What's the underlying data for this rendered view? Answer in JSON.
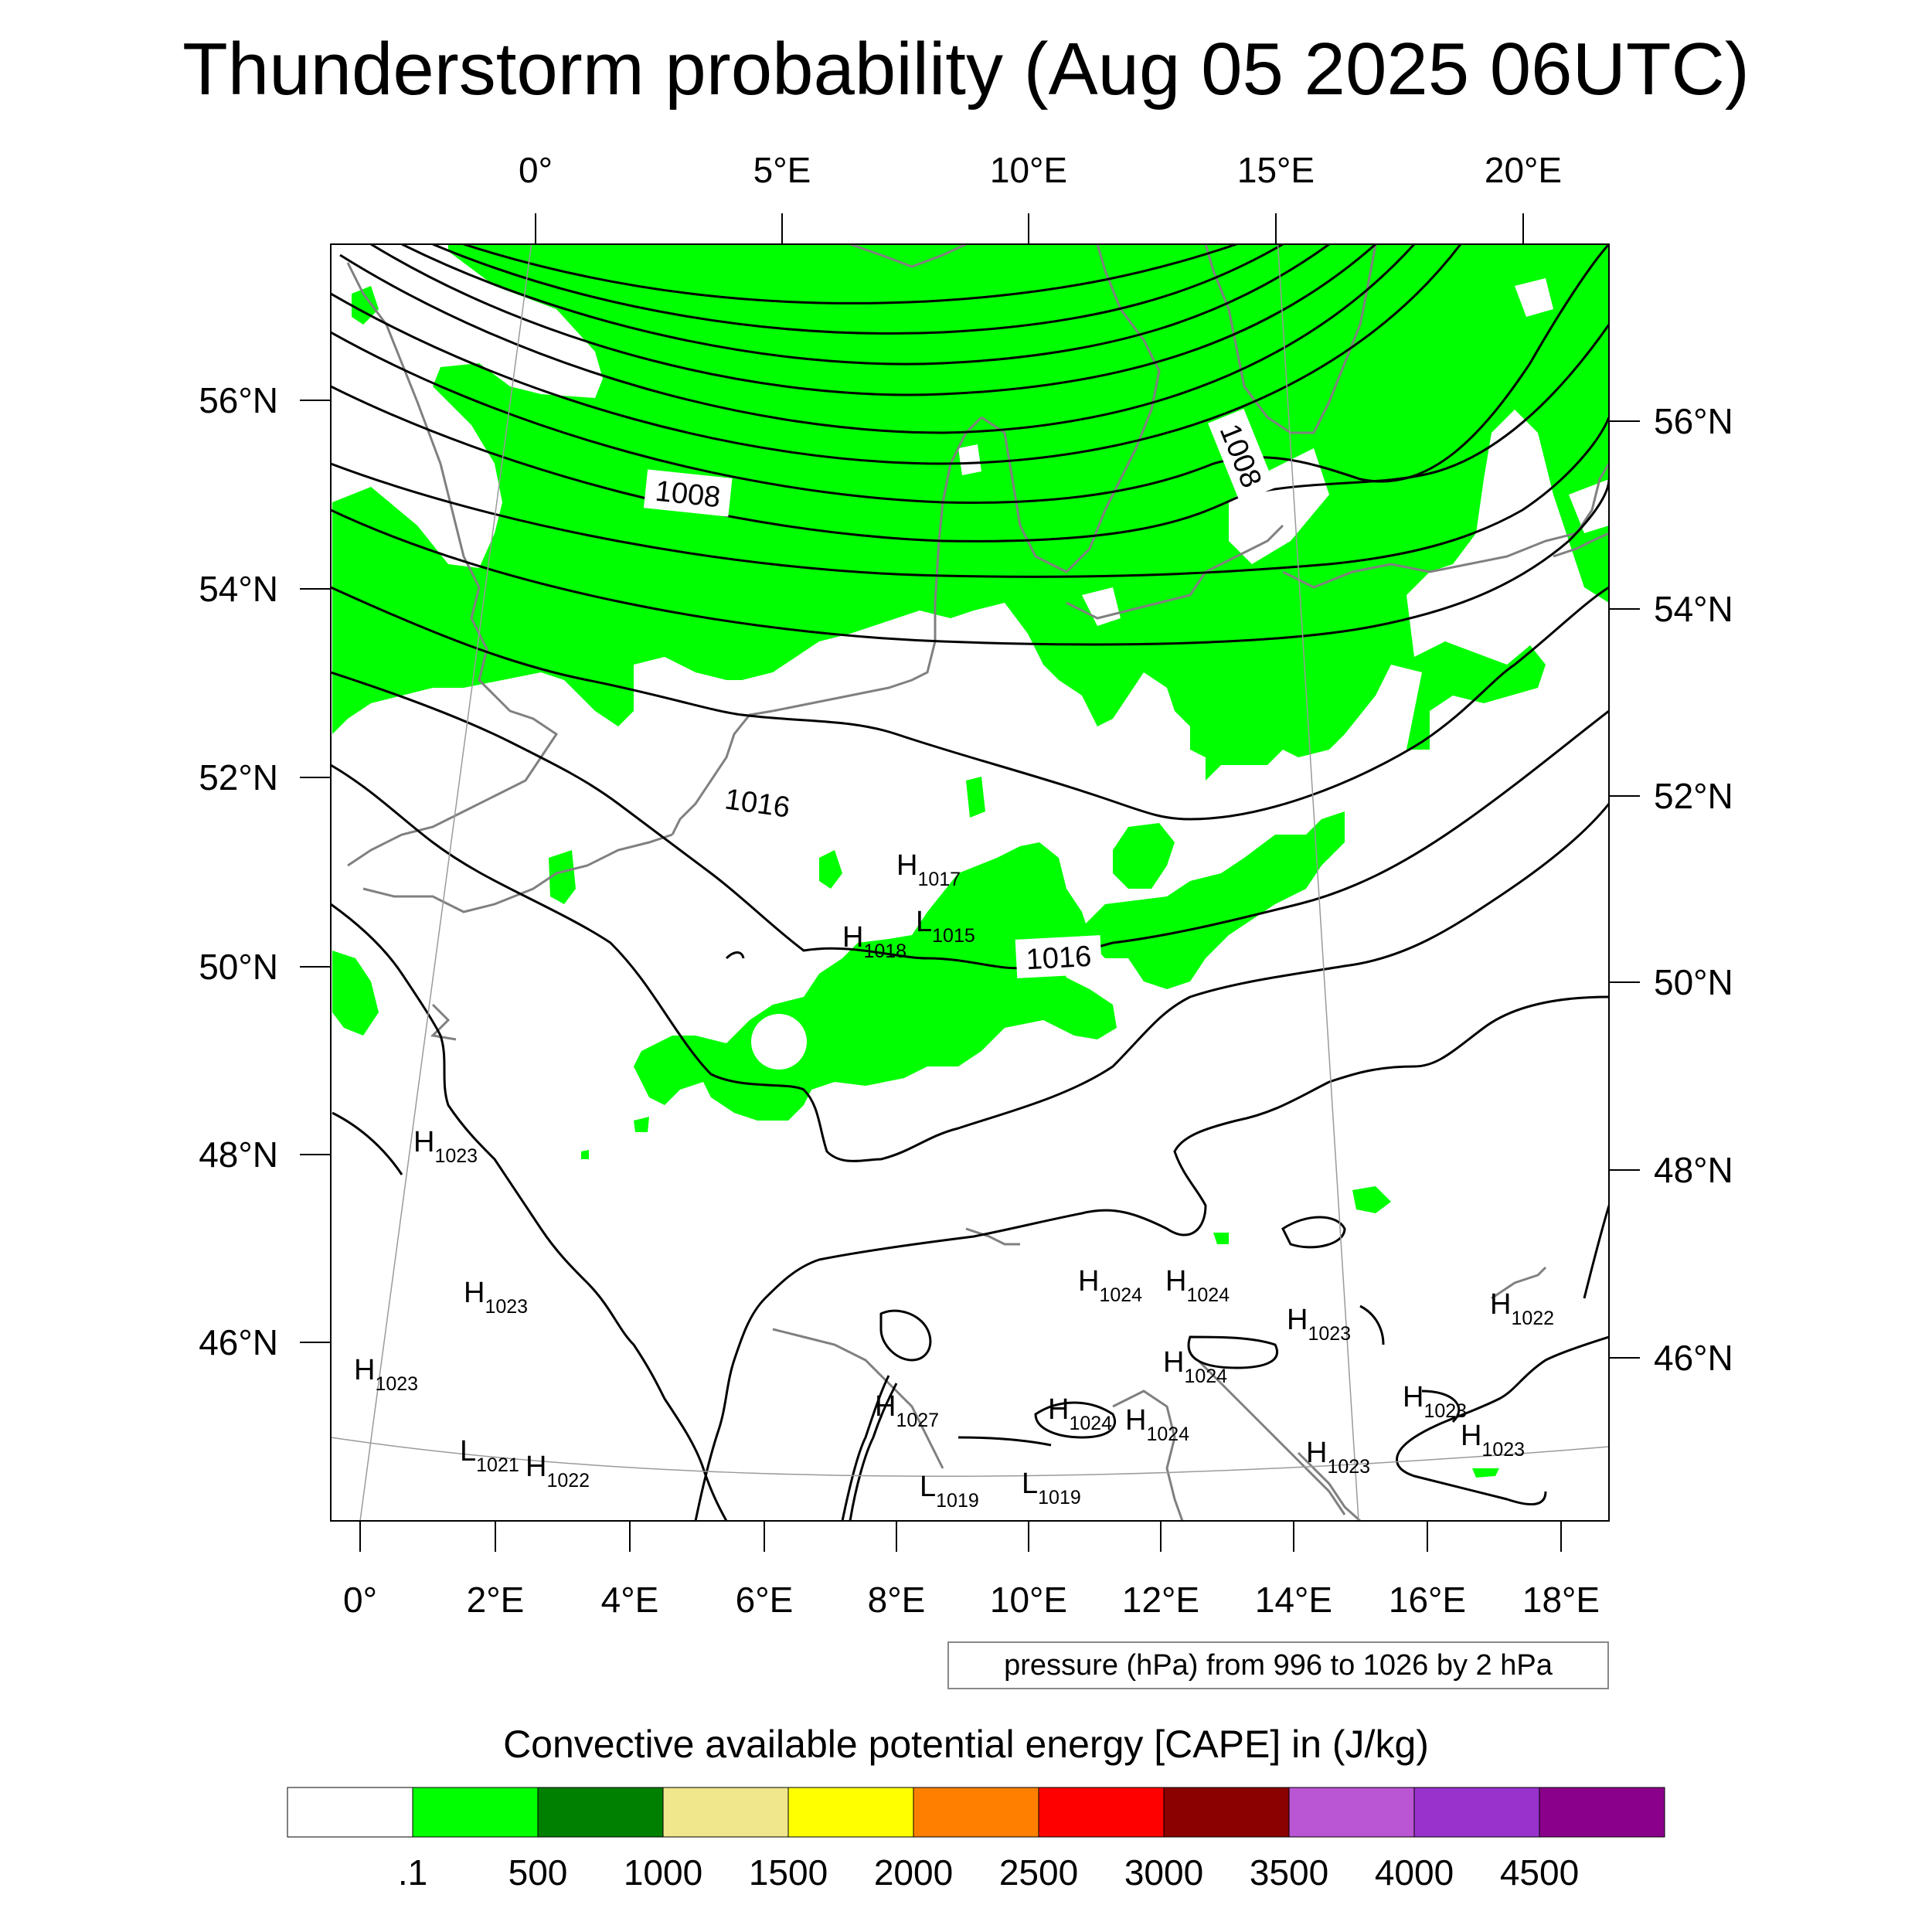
{
  "title": "Thunderstorm probability (Aug 05 2025 06UTC)",
  "map": {
    "top_lon_labels": [
      "0°",
      "5°E",
      "10°E",
      "15°E",
      "20°E"
    ],
    "bottom_lon_labels": [
      "0°",
      "2°E",
      "4°E",
      "6°E",
      "8°E",
      "10°E",
      "12°E",
      "14°E",
      "16°E",
      "18°E"
    ],
    "left_lat_labels": [
      "56°N",
      "54°N",
      "52°N",
      "50°N",
      "48°N",
      "46°N"
    ],
    "right_lat_labels": [
      "56°N",
      "54°N",
      "52°N",
      "50°N",
      "48°N",
      "46°N"
    ],
    "contour_labels": [
      {
        "text": "1008"
      },
      {
        "text": "1008"
      },
      {
        "text": "1016"
      },
      {
        "text": "1016"
      }
    ],
    "pressure_centers": [
      {
        "type": "H",
        "value": "1017"
      },
      {
        "type": "H",
        "value": "1018"
      },
      {
        "type": "L",
        "value": "1015"
      },
      {
        "type": "H",
        "value": "1023"
      },
      {
        "type": "H",
        "value": "1023"
      },
      {
        "type": "H",
        "value": "1023"
      },
      {
        "type": "L",
        "value": "1021"
      },
      {
        "type": "H",
        "value": "1022"
      },
      {
        "type": "H",
        "value": "1024"
      },
      {
        "type": "H",
        "value": "1024"
      },
      {
        "type": "H",
        "value": "1023"
      },
      {
        "type": "H",
        "value": "1022"
      },
      {
        "type": "H",
        "value": "1024"
      },
      {
        "type": "H",
        "value": "1027"
      },
      {
        "type": "H",
        "value": "1024"
      },
      {
        "type": "H",
        "value": "1024"
      },
      {
        "type": "H",
        "value": "1023"
      },
      {
        "type": "H",
        "value": "1023"
      },
      {
        "type": "H",
        "value": "1023"
      },
      {
        "type": "L",
        "value": "1019"
      },
      {
        "type": "L",
        "value": "1019"
      }
    ],
    "cape_fill_color": "#00ff00",
    "contour_color": "#000000",
    "coastline_color": "#808080"
  },
  "pressure_note": "pressure (hPa) from 996 to 1026 by 2 hPa",
  "colorbar": {
    "title": "Convective available potential energy [CAPE] in (J/kg)",
    "colors": [
      "#ffffff",
      "#00ff00",
      "#008000",
      "#f0e68c",
      "#ffff00",
      "#ff8000",
      "#ff0000",
      "#8b0000",
      "#ba55d3",
      "#9932cc",
      "#8b008b"
    ],
    "labels": [
      ".1",
      "500",
      "1000",
      "1500",
      "2000",
      "2500",
      "3000",
      "3500",
      "4000",
      "4500"
    ]
  }
}
